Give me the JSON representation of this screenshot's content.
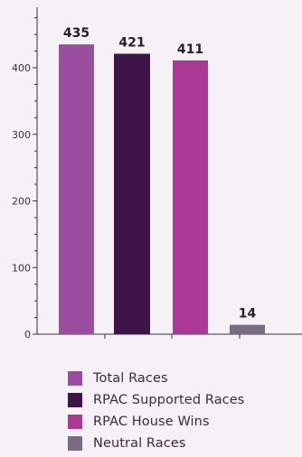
{
  "chart_data": {
    "type": "bar",
    "categories": [
      "Total Races",
      "RPAC Supported Races",
      "RPAC House Wins",
      "Neutral Races"
    ],
    "values": [
      435,
      421,
      411,
      14
    ],
    "data_labels": [
      "435",
      "421",
      "411",
      "14"
    ],
    "colors": [
      "#9b4ea0",
      "#3e1548",
      "#ab3894",
      "#7a6a82"
    ],
    "ylim": [
      0,
      500
    ],
    "yticks": [
      0,
      100,
      200,
      300,
      400
    ],
    "ytick_labels": [
      "0",
      "100",
      "200",
      "300",
      "400"
    ],
    "grid": false,
    "legend_position": "bottom"
  },
  "legend": {
    "items": [
      {
        "label": "Total Races",
        "color": "#9b4ea0"
      },
      {
        "label": "RPAC Supported Races",
        "color": "#3e1548"
      },
      {
        "label": "RPAC House Wins",
        "color": "#ab3894"
      },
      {
        "label": "Neutral Races",
        "color": "#7a6a82"
      }
    ]
  }
}
